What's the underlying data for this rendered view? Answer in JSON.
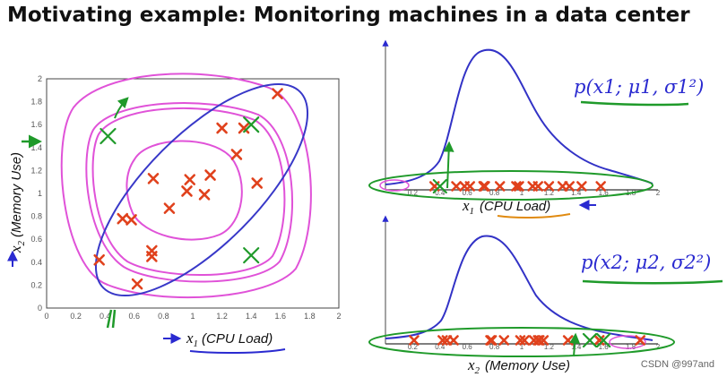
{
  "slide": {
    "title": "Motivating example: Monitoring machines in a data center",
    "watermark": "CSDN @997and"
  },
  "chart_data": [
    {
      "type": "scatter",
      "xlabel": "x1 (CPU Load)",
      "xlabel_var": "x",
      "xlabel_sub": "1",
      "xlabel_text": "(CPU Load)",
      "ylabel": "x2 (Memory Use)",
      "ylabel_var": "x",
      "ylabel_sub": "2",
      "ylabel_text": "(Memory Use)",
      "xlim": [
        0,
        2
      ],
      "ylim": [
        0,
        2
      ],
      "xticks": [
        "0",
        "0.2",
        "0.4",
        "0.6",
        "0.8",
        "1",
        "1.2",
        "1.4",
        "1.6",
        "1.8",
        "2"
      ],
      "yticks": [
        "0",
        "0.2",
        "0.4",
        "0.6",
        "0.8",
        "1",
        "1.2",
        "1.4",
        "1.6",
        "1.8",
        "2"
      ],
      "points": [
        [
          0.36,
          0.42
        ],
        [
          0.52,
          0.78
        ],
        [
          0.58,
          0.77
        ],
        [
          0.62,
          0.21
        ],
        [
          0.72,
          0.5
        ],
        [
          0.72,
          0.45
        ],
        [
          0.73,
          1.13
        ],
        [
          0.84,
          0.87
        ],
        [
          0.96,
          1.02
        ],
        [
          0.98,
          1.12
        ],
        [
          1.08,
          0.99
        ],
        [
          1.12,
          1.16
        ],
        [
          1.2,
          1.57
        ],
        [
          1.3,
          1.34
        ],
        [
          1.35,
          1.57
        ],
        [
          1.44,
          1.09
        ],
        [
          1.58,
          1.87
        ]
      ],
      "annotation_points": [
        [
          0.42,
          1.5
        ],
        [
          1.4,
          1.6
        ],
        [
          1.4,
          0.46
        ]
      ]
    },
    {
      "type": "scatter",
      "title": "p(x1; μ1, σ1²)",
      "xlabel": "x1 (CPU Load)",
      "xlabel_var": "x",
      "xlabel_sub": "1",
      "xlabel_text": "(CPU Load)",
      "annotation_text": "p(x1; μ1, σ1²)",
      "xlim": [
        0,
        2
      ],
      "xticks": [
        "0.2",
        "0.4",
        "0.6",
        "0.8",
        "1",
        "1.2",
        "1.4",
        "1.6",
        "1.8",
        "2"
      ],
      "x": [
        0.36,
        0.52,
        0.58,
        0.62,
        0.72,
        0.72,
        0.73,
        0.84,
        0.96,
        0.98,
        1.08,
        1.12,
        1.2,
        1.3,
        1.35,
        1.44,
        1.58
      ],
      "annotation_points": [
        0.4
      ]
    },
    {
      "type": "scatter",
      "title": "p(x2; μ2, σ2²)",
      "xlabel": "x2 (Memory Use)",
      "xlabel_var": "x",
      "xlabel_sub": "2",
      "xlabel_text": "(Memory Use)",
      "annotation_text": "p(x2; μ2, σ2²)",
      "xlim": [
        0,
        2
      ],
      "xticks": [
        "0.2",
        "0.4",
        "0.6",
        "0.8",
        "1",
        "1.2",
        "1.4",
        "1.6",
        "1.8",
        "2"
      ],
      "x": [
        0.21,
        0.42,
        0.45,
        0.5,
        0.77,
        0.78,
        0.87,
        0.99,
        1.02,
        1.09,
        1.12,
        1.13,
        1.16,
        1.34,
        1.57,
        1.57,
        1.87
      ],
      "annotation_points": [
        1.5,
        1.6
      ]
    }
  ]
}
